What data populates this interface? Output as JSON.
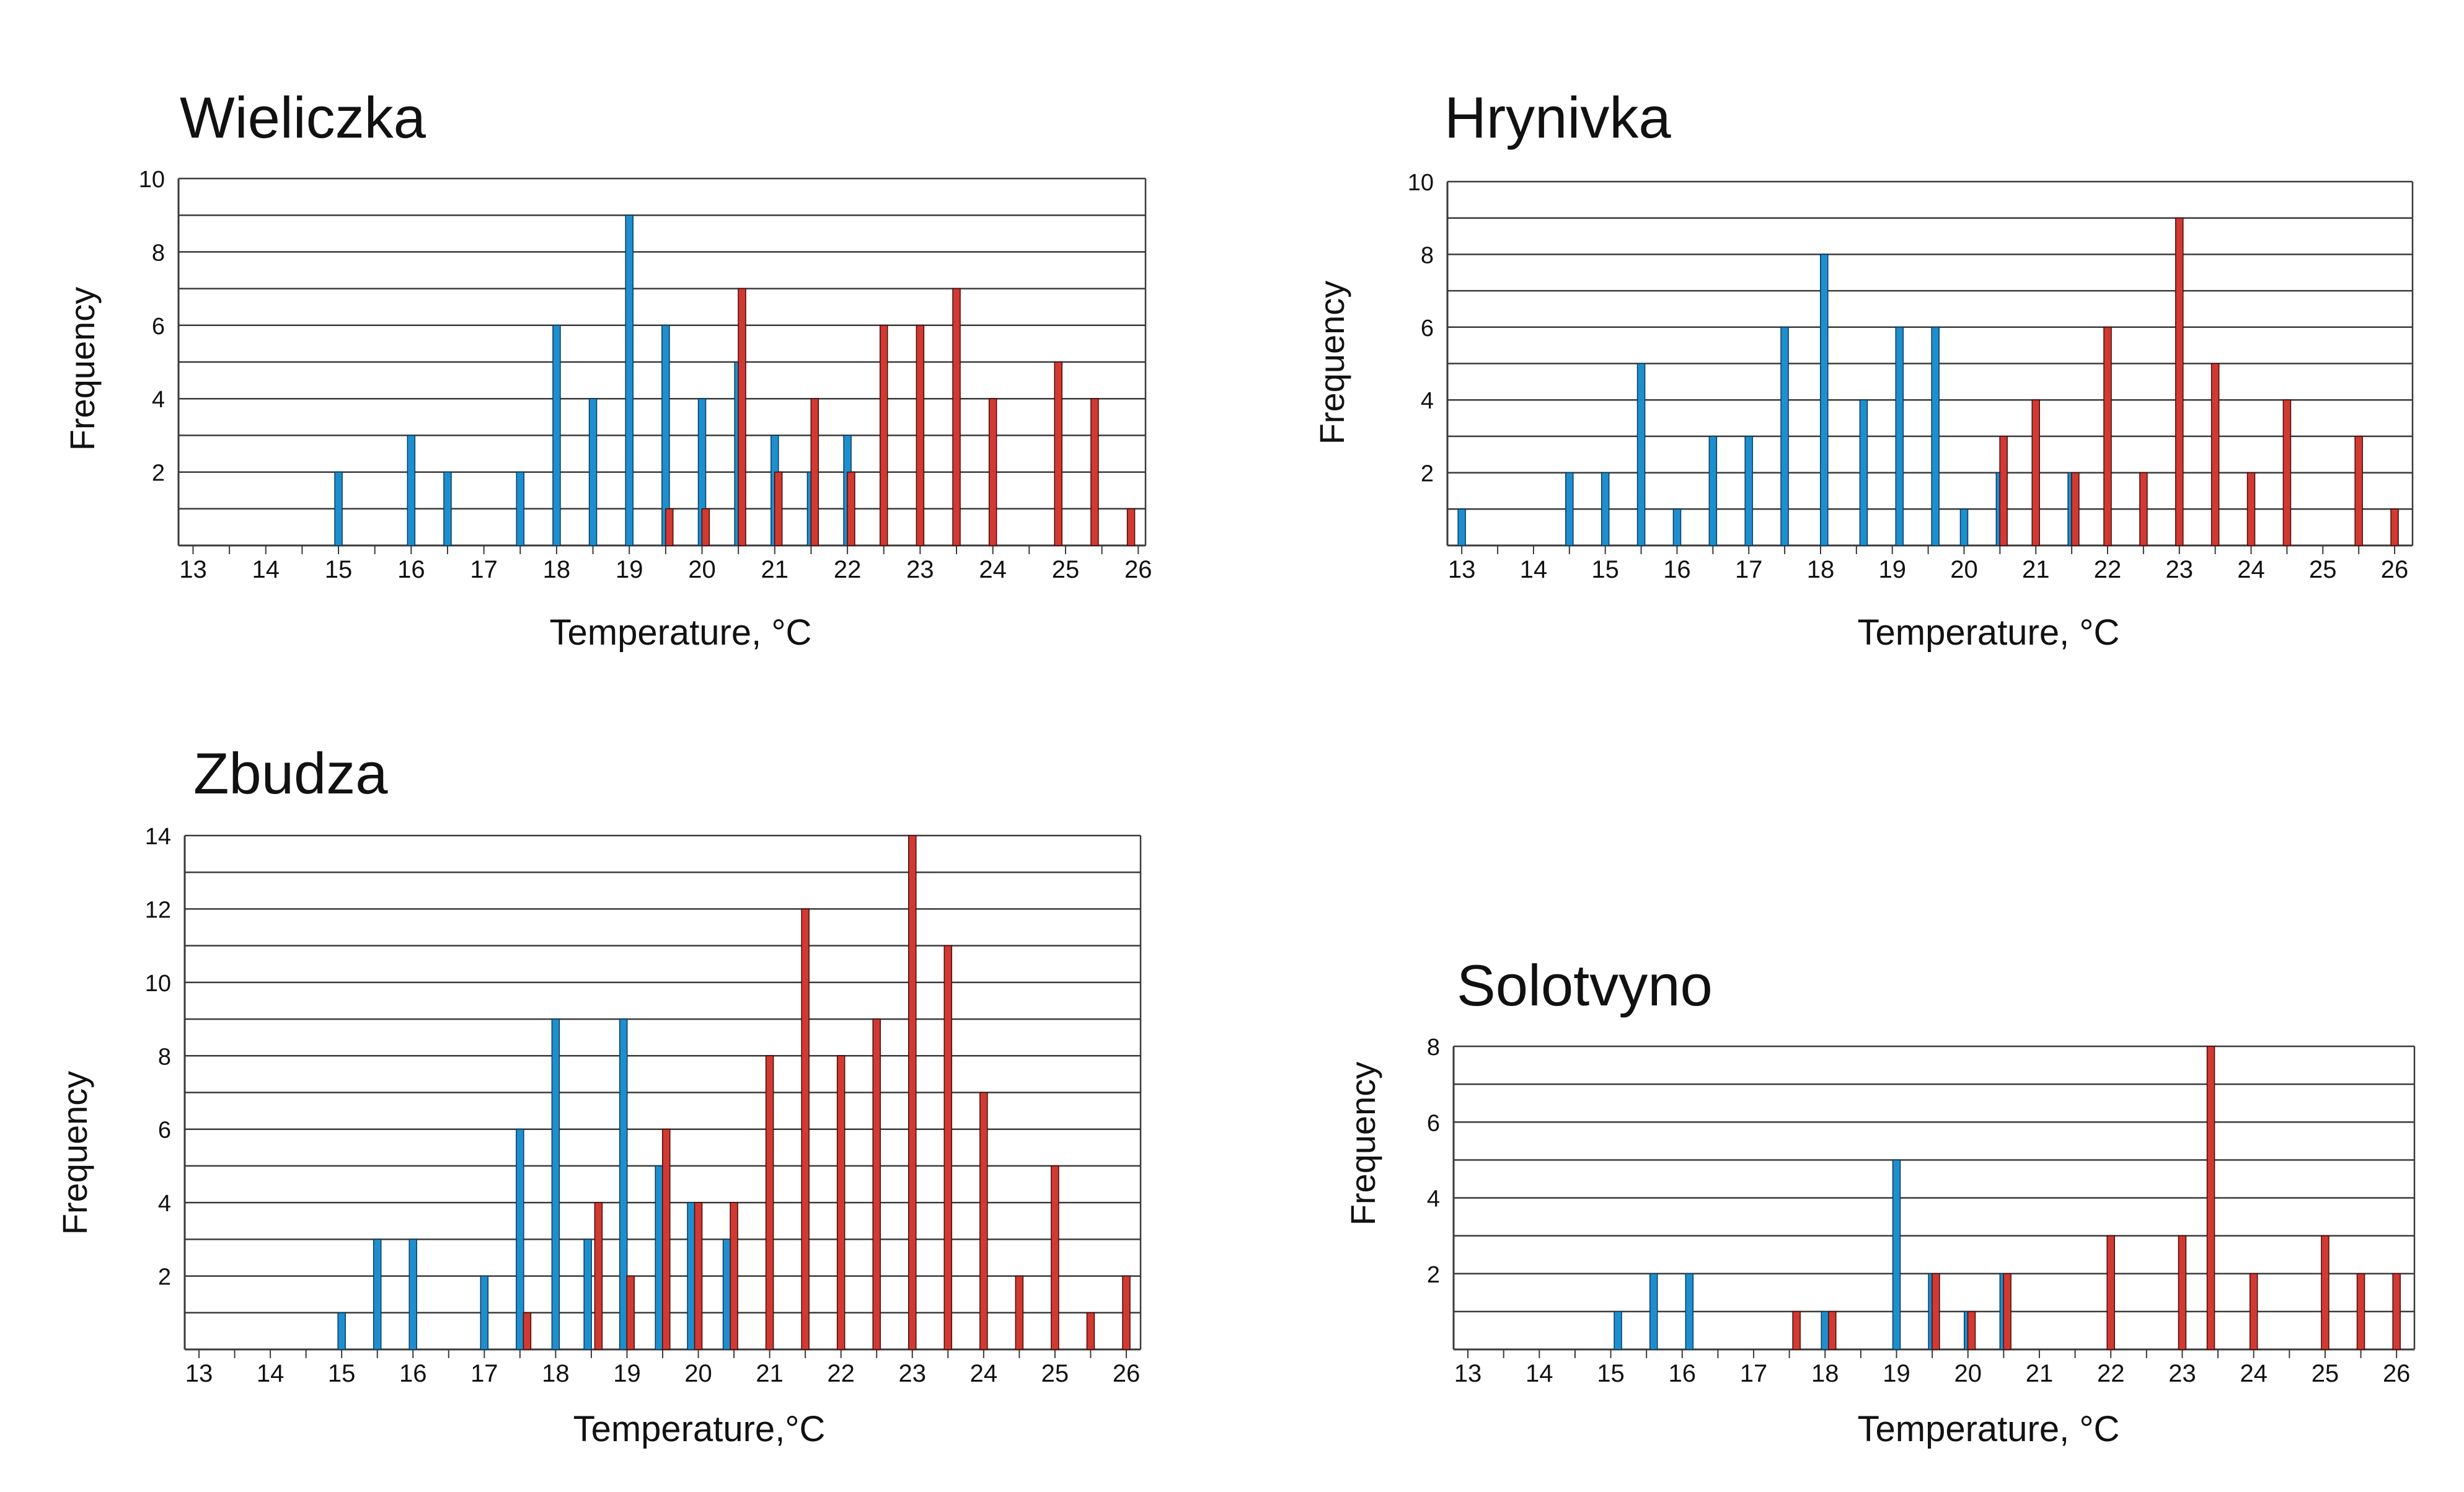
{
  "figure": {
    "colors": {
      "blue": "#1E8FCE",
      "blue_edge": "#0A3A5C",
      "red": "#D03A32",
      "red_edge": "#4A0A08",
      "grid": "#3A3A3A"
    }
  },
  "chart_data": [
    {
      "type": "bar",
      "id": "wieliczka",
      "title": "Wieliczka",
      "xlabel": "Temperature, ",
      "unit": "°C",
      "ylabel": "Frequency",
      "xlim": [
        12.8,
        26.1
      ],
      "ylim": [
        0,
        10
      ],
      "xticks": [
        13,
        14,
        15,
        16,
        17,
        18,
        19,
        20,
        21,
        22,
        23,
        24,
        25,
        26
      ],
      "xtick_labels": [
        "13",
        "14",
        "15",
        "16",
        "17",
        "18",
        "19",
        "20",
        "21",
        "22",
        "23",
        "24",
        "25",
        "26"
      ],
      "yticks": [
        2,
        4,
        6,
        8,
        10
      ],
      "ytick_labels": [
        "2",
        "4",
        "6",
        "8",
        "10"
      ],
      "grid_step": 1,
      "series": [
        {
          "name": "blue",
          "color": "blue",
          "points": [
            [
              15,
              2
            ],
            [
              16,
              3
            ],
            [
              16.5,
              2
            ],
            [
              17.5,
              2
            ],
            [
              18,
              6
            ],
            [
              18.5,
              4
            ],
            [
              19,
              9
            ],
            [
              19.5,
              6
            ],
            [
              20,
              4
            ],
            [
              20.5,
              5
            ],
            [
              21,
              3
            ],
            [
              21.5,
              2
            ],
            [
              22,
              3
            ]
          ]
        },
        {
          "name": "red",
          "color": "red",
          "points": [
            [
              19.55,
              1
            ],
            [
              20.05,
              1
            ],
            [
              20.55,
              7
            ],
            [
              21.05,
              2
            ],
            [
              21.55,
              4
            ],
            [
              22.05,
              2
            ],
            [
              22.5,
              6
            ],
            [
              23,
              6
            ],
            [
              23.5,
              7
            ],
            [
              24,
              4
            ],
            [
              24.9,
              5
            ],
            [
              25.4,
              4
            ],
            [
              25.9,
              1
            ]
          ]
        }
      ]
    },
    {
      "type": "bar",
      "id": "hrynivka",
      "title": "Hrynivka",
      "xlabel": "Temperature, ",
      "unit": "°C",
      "ylabel": "Frequency",
      "xlim": [
        12.8,
        26.25
      ],
      "ylim": [
        0,
        10
      ],
      "xticks": [
        13,
        14,
        15,
        16,
        17,
        18,
        19,
        20,
        21,
        22,
        23,
        24,
        25,
        26
      ],
      "xtick_labels": [
        "13",
        "14",
        "15",
        "16",
        "17",
        "18",
        "19",
        "20",
        "21",
        "22",
        "23",
        "24",
        "25",
        "26"
      ],
      "yticks": [
        2,
        4,
        6,
        8,
        10
      ],
      "ytick_labels": [
        "2",
        "4",
        "6",
        "8",
        "10"
      ],
      "grid_step": 1,
      "series": [
        {
          "name": "blue",
          "color": "blue",
          "points": [
            [
              13,
              1
            ],
            [
              14.5,
              2
            ],
            [
              15,
              2
            ],
            [
              15.5,
              5
            ],
            [
              16,
              1
            ],
            [
              16.5,
              3
            ],
            [
              17,
              3
            ],
            [
              17.5,
              6
            ],
            [
              18.05,
              8
            ],
            [
              18.6,
              4
            ],
            [
              19.1,
              6
            ],
            [
              19.6,
              6
            ],
            [
              20,
              1
            ],
            [
              20.5,
              2
            ],
            [
              21.5,
              2
            ]
          ]
        },
        {
          "name": "red",
          "color": "red",
          "points": [
            [
              20.55,
              3
            ],
            [
              21,
              4
            ],
            [
              21.55,
              2
            ],
            [
              22,
              6
            ],
            [
              22.5,
              2
            ],
            [
              23,
              9
            ],
            [
              23.5,
              5
            ],
            [
              24,
              2
            ],
            [
              24.5,
              4
            ],
            [
              25.5,
              3
            ],
            [
              26,
              1
            ]
          ]
        }
      ]
    },
    {
      "type": "bar",
      "id": "zbudza",
      "title": "Zbudza",
      "xlabel": "Temperature,",
      "unit": "°C",
      "ylabel": "Frequency",
      "xlim": [
        12.8,
        26.2
      ],
      "ylim": [
        0,
        14
      ],
      "xticks": [
        13,
        14,
        15,
        16,
        17,
        18,
        19,
        20,
        21,
        22,
        23,
        24,
        25,
        26
      ],
      "xtick_labels": [
        "13",
        "14",
        "15",
        "16",
        "17",
        "18",
        "19",
        "20",
        "21",
        "22",
        "23",
        "24",
        "25",
        "26"
      ],
      "yticks": [
        2,
        4,
        6,
        8,
        10,
        12,
        14
      ],
      "ytick_labels": [
        "2",
        "4",
        "6",
        "8",
        "10",
        "12",
        "14"
      ],
      "grid_step": 1,
      "series": [
        {
          "name": "blue",
          "color": "blue",
          "points": [
            [
              15,
              1
            ],
            [
              15.5,
              3
            ],
            [
              16,
              3
            ],
            [
              17,
              2
            ],
            [
              17.5,
              6
            ],
            [
              18,
              9
            ],
            [
              18.45,
              3
            ],
            [
              18.95,
              9
            ],
            [
              19.45,
              5
            ],
            [
              19.9,
              4
            ],
            [
              20.4,
              3
            ]
          ]
        },
        {
          "name": "red",
          "color": "red",
          "points": [
            [
              17.6,
              1
            ],
            [
              18.6,
              4
            ],
            [
              19.05,
              2
            ],
            [
              19.55,
              6
            ],
            [
              20,
              4
            ],
            [
              20.5,
              4
            ],
            [
              21,
              8
            ],
            [
              21.5,
              12
            ],
            [
              22,
              8
            ],
            [
              22.5,
              9
            ],
            [
              23,
              14
            ],
            [
              23.5,
              11
            ],
            [
              24,
              7
            ],
            [
              24.5,
              2
            ],
            [
              25,
              5
            ],
            [
              25.5,
              1
            ],
            [
              26,
              2
            ]
          ]
        }
      ]
    },
    {
      "type": "bar",
      "id": "solotvyno",
      "title": "Solotvyno",
      "xlabel": "Temperature, ",
      "unit": "°C",
      "ylabel": "Frequency",
      "xlim": [
        12.8,
        26.25
      ],
      "ylim": [
        0,
        8
      ],
      "xticks": [
        13,
        14,
        15,
        16,
        17,
        18,
        19,
        20,
        21,
        22,
        23,
        24,
        25,
        26
      ],
      "xtick_labels": [
        "13",
        "14",
        "15",
        "16",
        "17",
        "18",
        "19",
        "20",
        "21",
        "22",
        "23",
        "24",
        "25",
        "26"
      ],
      "yticks": [
        2,
        4,
        6,
        8
      ],
      "ytick_labels": [
        "2",
        "4",
        "6",
        "8"
      ],
      "grid_step": 1,
      "series": [
        {
          "name": "blue",
          "color": "blue",
          "points": [
            [
              15.1,
              1
            ],
            [
              15.6,
              2
            ],
            [
              16.1,
              2
            ],
            [
              18,
              1
            ],
            [
              19,
              5
            ],
            [
              19.5,
              2
            ],
            [
              20,
              1
            ],
            [
              20.5,
              2
            ]
          ]
        },
        {
          "name": "red",
          "color": "red",
          "points": [
            [
              17.6,
              1
            ],
            [
              18.1,
              1
            ],
            [
              19.55,
              2
            ],
            [
              20.05,
              1
            ],
            [
              20.55,
              2
            ],
            [
              22,
              3
            ],
            [
              23,
              3
            ],
            [
              23.4,
              8
            ],
            [
              24,
              2
            ],
            [
              25,
              3
            ],
            [
              25.5,
              2
            ],
            [
              26,
              2
            ]
          ]
        }
      ]
    }
  ]
}
